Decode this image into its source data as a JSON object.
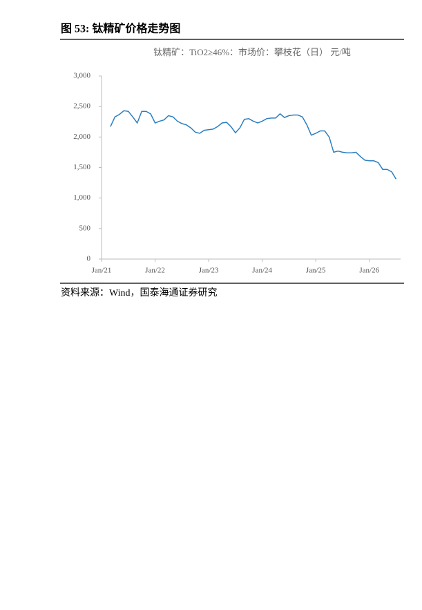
{
  "figure_label": "图 53:  钛精矿价格走势图",
  "source": "资料来源：Wind，国泰海通证券研究",
  "chart_data": {
    "type": "line",
    "title": "钛精矿：TiO2≥46%：市场价：攀枝花（日） 元/吨",
    "x": [
      "2021-03",
      "2021-04",
      "2021-05",
      "2021-06",
      "2021-07",
      "2021-08",
      "2021-09",
      "2021-10",
      "2021-11",
      "2021-12",
      "2022-01",
      "2022-02",
      "2022-03",
      "2022-04",
      "2022-05",
      "2022-06",
      "2022-07",
      "2022-08",
      "2022-09",
      "2022-10",
      "2022-11",
      "2022-12",
      "2023-01",
      "2023-02",
      "2023-03",
      "2023-04",
      "2023-05",
      "2023-06",
      "2023-07",
      "2023-08",
      "2023-09",
      "2023-10",
      "2023-11",
      "2023-12",
      "2024-01",
      "2024-02",
      "2024-03",
      "2024-04",
      "2024-05",
      "2024-06",
      "2024-07",
      "2024-08",
      "2024-09",
      "2024-10",
      "2024-11",
      "2024-12",
      "2025-01",
      "2025-02",
      "2025-03",
      "2025-04",
      "2025-05",
      "2025-06",
      "2025-07",
      "2025-08",
      "2025-09",
      "2025-10",
      "2025-11",
      "2025-12",
      "2026-01",
      "2026-02",
      "2026-03",
      "2026-04",
      "2026-05",
      "2026-06",
      "2026-07"
    ],
    "series": [
      {
        "name": "钛精矿：TiO2≥46%：市场价：攀枝花（日）",
        "color": "#2a7fc1",
        "values": [
          2170,
          2330,
          2370,
          2430,
          2420,
          2330,
          2230,
          2420,
          2420,
          2380,
          2230,
          2260,
          2280,
          2350,
          2330,
          2260,
          2220,
          2200,
          2150,
          2080,
          2060,
          2110,
          2120,
          2130,
          2170,
          2230,
          2240,
          2170,
          2070,
          2150,
          2290,
          2300,
          2260,
          2230,
          2260,
          2300,
          2310,
          2310,
          2380,
          2320,
          2350,
          2360,
          2360,
          2330,
          2200,
          2030,
          2060,
          2100,
          2100,
          2000,
          1750,
          1770,
          1750,
          1740,
          1740,
          1750,
          1680,
          1620,
          1610,
          1610,
          1580,
          1470,
          1470,
          1430,
          1310
        ]
      }
    ],
    "xlim": [
      "2021-01",
      "2026-08"
    ],
    "xticks": [
      {
        "value": "2021-01",
        "label": "Jan/21"
      },
      {
        "value": "2022-01",
        "label": "Jan/22"
      },
      {
        "value": "2023-01",
        "label": "Jan/23"
      },
      {
        "value": "2024-01",
        "label": "Jan/24"
      },
      {
        "value": "2025-01",
        "label": "Jan/25"
      },
      {
        "value": "2026-01",
        "label": "Jan/26"
      }
    ],
    "ylim": [
      0,
      3000
    ],
    "yticks": [
      0,
      500,
      {
        "value": 1000,
        "label": "1,000"
      },
      {
        "value": 1500,
        "label": "1,500"
      },
      {
        "value": 2000,
        "label": "2,000"
      },
      {
        "value": 2500,
        "label": "2,500"
      },
      {
        "value": 3000,
        "label": "3,000"
      }
    ],
    "grid": false
  }
}
